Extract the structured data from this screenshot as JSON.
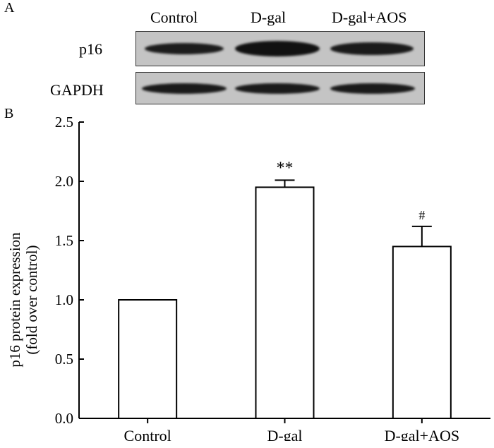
{
  "panel_a": {
    "letter": "A",
    "lanes": [
      "Control",
      "D-gal",
      "D-gal+AOS"
    ],
    "rows": [
      "p16",
      "GAPDH"
    ]
  },
  "chart_data": {
    "panel_letter": "B",
    "type": "bar",
    "categories": [
      "Control",
      "D-gal",
      "D-gal+AOS"
    ],
    "values": [
      1.0,
      1.95,
      1.45
    ],
    "errors": [
      0,
      0.06,
      0.17
    ],
    "annotations": [
      "",
      "**",
      "#"
    ],
    "ylabel_line1": "p16 protein expression",
    "ylabel_line2": "(fold over control)",
    "ylim": [
      0,
      2.5
    ],
    "yticks": [
      "0.0",
      "0.5",
      "1.0",
      "1.5",
      "2.0",
      "2.5"
    ],
    "bar_fill": "#ffffff",
    "bar_stroke": "#000000"
  }
}
